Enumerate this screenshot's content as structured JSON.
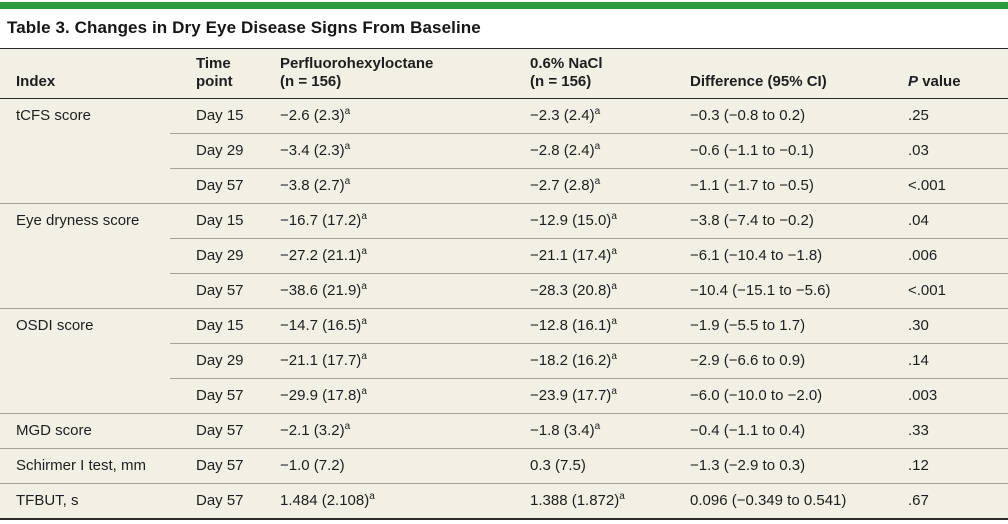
{
  "colors": {
    "accent_bar": "#2a9b3d",
    "table_bg": "#f2f0e4",
    "rule_dark": "#2b2b2b",
    "rule_light": "#a5a396",
    "text": "#1e1e1e"
  },
  "title": "Table 3. Changes in Dry Eye Disease Signs From Baseline",
  "header": {
    "index": "Index",
    "time": [
      "Time",
      "point"
    ],
    "drug": [
      "Perfluorohexyloctane",
      "(n = 156)"
    ],
    "nacl": [
      "0.6% NaCl",
      "(n = 156)"
    ],
    "difference": "Difference (95% CI)",
    "p_italic": "P",
    "p_rest": "value"
  },
  "groups": [
    {
      "index": "tCFS score",
      "rows": [
        {
          "time": "Day 15",
          "drug": "−2.6 (2.3)",
          "drug_sup": "a",
          "nacl": "−2.3 (2.4)",
          "nacl_sup": "a",
          "diff": "−0.3 (−0.8 to 0.2)",
          "p": ".25"
        },
        {
          "time": "Day 29",
          "drug": "−3.4 (2.3)",
          "drug_sup": "a",
          "nacl": "−2.8 (2.4)",
          "nacl_sup": "a",
          "diff": "−0.6 (−1.1 to −0.1)",
          "p": ".03"
        },
        {
          "time": "Day 57",
          "drug": "−3.8 (2.7)",
          "drug_sup": "a",
          "nacl": "−2.7 (2.8)",
          "nacl_sup": "a",
          "diff": "−1.1 (−1.7 to −0.5)",
          "p": "<.001"
        }
      ]
    },
    {
      "index": "Eye dryness score",
      "rows": [
        {
          "time": "Day 15",
          "drug": "−16.7 (17.2)",
          "drug_sup": "a",
          "nacl": "−12.9 (15.0)",
          "nacl_sup": "a",
          "diff": "−3.8 (−7.4 to −0.2)",
          "p": ".04"
        },
        {
          "time": "Day 29",
          "drug": "−27.2 (21.1)",
          "drug_sup": "a",
          "nacl": "−21.1 (17.4)",
          "nacl_sup": "a",
          "diff": "−6.1 (−10.4 to −1.8)",
          "p": ".006"
        },
        {
          "time": "Day 57",
          "drug": "−38.6 (21.9)",
          "drug_sup": "a",
          "nacl": "−28.3 (20.8)",
          "nacl_sup": "a",
          "diff": "−10.4 (−15.1 to −5.6)",
          "p": "<.001"
        }
      ]
    },
    {
      "index": "OSDI score",
      "rows": [
        {
          "time": "Day 15",
          "drug": "−14.7 (16.5)",
          "drug_sup": "a",
          "nacl": "−12.8 (16.1)",
          "nacl_sup": "a",
          "diff": "−1.9 (−5.5 to 1.7)",
          "p": ".30"
        },
        {
          "time": "Day 29",
          "drug": "−21.1 (17.7)",
          "drug_sup": "a",
          "nacl": "−18.2 (16.2)",
          "nacl_sup": "a",
          "diff": "−2.9 (−6.6 to 0.9)",
          "p": ".14"
        },
        {
          "time": "Day 57",
          "drug": "−29.9 (17.8)",
          "drug_sup": "a",
          "nacl": "−23.9 (17.7)",
          "nacl_sup": "a",
          "diff": "−6.0 (−10.0 to −2.0)",
          "p": ".003"
        }
      ]
    },
    {
      "index": "MGD score",
      "rows": [
        {
          "time": "Day 57",
          "drug": "−2.1 (3.2)",
          "drug_sup": "a",
          "nacl": "−1.8 (3.4)",
          "nacl_sup": "a",
          "diff": "−0.4 (−1.1 to 0.4)",
          "p": ".33"
        }
      ]
    },
    {
      "index": "Schirmer I test, mm",
      "rows": [
        {
          "time": "Day 57",
          "drug": "−1.0 (7.2)",
          "drug_sup": "",
          "nacl": "0.3 (7.5)",
          "nacl_sup": "",
          "diff": "−1.3 (−2.9 to 0.3)",
          "p": ".12"
        }
      ]
    },
    {
      "index": "TFBUT, s",
      "rows": [
        {
          "time": "Day 57",
          "drug": "1.484 (2.108)",
          "drug_sup": "a",
          "nacl": "1.388 (1.872)",
          "nacl_sup": "a",
          "diff": "0.096 (−0.349 to 0.541)",
          "p": ".67"
        }
      ]
    }
  ]
}
